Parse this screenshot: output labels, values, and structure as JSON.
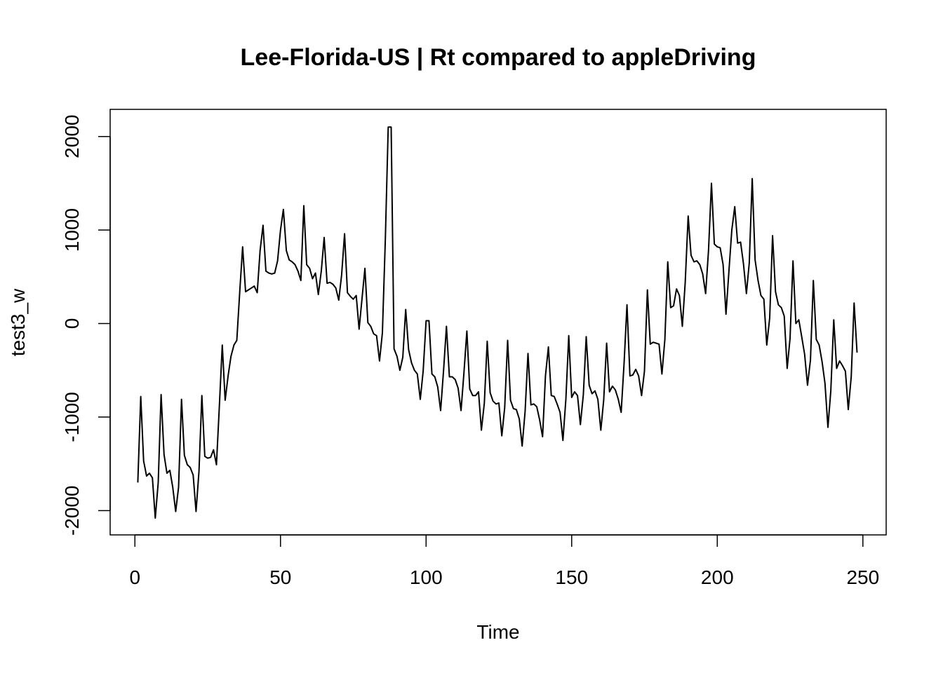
{
  "chart_data": {
    "type": "line",
    "title": "Lee-Florida-US | Rt compared to appleDriving",
    "xlabel": "Time",
    "ylabel": "test3_w",
    "xlim": [
      -8.5,
      258
    ],
    "ylim": [
      -2260,
      2290
    ],
    "xticks": [
      0,
      50,
      100,
      150,
      200,
      250
    ],
    "yticks": [
      -2000,
      -1000,
      0,
      1000,
      2000
    ],
    "grid": false,
    "legend": "none",
    "line_color": "#000000",
    "x": [
      1,
      2,
      3,
      4,
      5,
      6,
      7,
      8,
      9,
      10,
      11,
      12,
      13,
      14,
      15,
      16,
      17,
      18,
      19,
      20,
      21,
      22,
      23,
      24,
      25,
      26,
      27,
      28,
      29,
      30,
      31,
      32,
      33,
      34,
      35,
      36,
      37,
      38,
      39,
      40,
      41,
      42,
      43,
      44,
      45,
      46,
      47,
      48,
      49,
      50,
      51,
      52,
      53,
      54,
      55,
      56,
      57,
      58,
      59,
      60,
      61,
      62,
      63,
      64,
      65,
      66,
      67,
      68,
      69,
      70,
      71,
      72,
      73,
      74,
      75,
      76,
      77,
      78,
      79,
      80,
      81,
      82,
      83,
      84,
      85,
      86,
      87,
      88,
      89,
      90,
      91,
      92,
      93,
      94,
      95,
      96,
      97,
      98,
      99,
      100,
      101,
      102,
      103,
      104,
      105,
      106,
      107,
      108,
      109,
      110,
      111,
      112,
      113,
      114,
      115,
      116,
      117,
      118,
      119,
      120,
      121,
      122,
      123,
      124,
      125,
      126,
      127,
      128,
      129,
      130,
      131,
      132,
      133,
      134,
      135,
      136,
      137,
      138,
      139,
      140,
      141,
      142,
      143,
      144,
      145,
      146,
      147,
      148,
      149,
      150,
      151,
      152,
      153,
      154,
      155,
      156,
      157,
      158,
      159,
      160,
      161,
      162,
      163,
      164,
      165,
      166,
      167,
      168,
      169,
      170,
      171,
      172,
      173,
      174,
      175,
      176,
      177,
      178,
      179,
      180,
      181,
      182,
      183,
      184,
      185,
      186,
      187,
      188,
      189,
      190,
      191,
      192,
      193,
      194,
      195,
      196,
      197,
      198,
      199,
      200,
      201,
      202,
      203,
      204,
      205,
      206,
      207,
      208,
      209,
      210,
      211,
      212,
      213,
      214,
      215,
      216,
      217,
      218,
      219,
      220,
      221,
      222,
      223,
      224,
      225,
      226,
      227,
      228,
      229,
      230,
      231,
      232,
      233,
      234,
      235,
      236,
      237,
      238,
      239,
      240,
      241,
      242,
      243,
      244,
      245,
      246,
      247,
      248
    ],
    "y": [
      -1700,
      -780,
      -1470,
      -1630,
      -1600,
      -1650,
      -2080,
      -1700,
      -760,
      -1400,
      -1600,
      -1570,
      -1750,
      -2010,
      -1750,
      -810,
      -1410,
      -1510,
      -1540,
      -1620,
      -2010,
      -1580,
      -770,
      -1420,
      -1440,
      -1430,
      -1350,
      -1510,
      -890,
      -230,
      -820,
      -560,
      -350,
      -230,
      -180,
      340,
      820,
      340,
      360,
      380,
      400,
      330,
      780,
      1050,
      560,
      540,
      530,
      540,
      670,
      1000,
      1220,
      780,
      680,
      660,
      630,
      560,
      460,
      1260,
      630,
      590,
      480,
      540,
      310,
      560,
      920,
      430,
      440,
      420,
      380,
      250,
      520,
      960,
      330,
      290,
      260,
      300,
      -60,
      270,
      590,
      10,
      -30,
      -110,
      -130,
      -400,
      -100,
      900,
      2100,
      2100,
      -270,
      -350,
      -500,
      -360,
      150,
      -280,
      -420,
      -500,
      -540,
      -810,
      -510,
      30,
      30,
      -540,
      -570,
      -680,
      -930,
      -500,
      -30,
      -570,
      -570,
      -600,
      -690,
      -930,
      -530,
      -80,
      -700,
      -770,
      -770,
      -730,
      -1140,
      -850,
      -190,
      -740,
      -830,
      -860,
      -850,
      -1200,
      -900,
      -180,
      -820,
      -910,
      -920,
      -1020,
      -1310,
      -940,
      -320,
      -870,
      -860,
      -890,
      -1030,
      -1210,
      -560,
      -250,
      -770,
      -780,
      -860,
      -950,
      -1250,
      -810,
      -130,
      -790,
      -730,
      -770,
      -1080,
      -760,
      -140,
      -660,
      -750,
      -720,
      -810,
      -1140,
      -820,
      -210,
      -730,
      -670,
      -710,
      -810,
      -950,
      -420,
      200,
      -560,
      -550,
      -490,
      -560,
      -770,
      -510,
      360,
      -220,
      -200,
      -210,
      -220,
      -540,
      -170,
      660,
      170,
      190,
      370,
      300,
      -30,
      440,
      1150,
      730,
      660,
      670,
      630,
      530,
      320,
      780,
      1500,
      850,
      820,
      810,
      630,
      100,
      560,
      1000,
      1250,
      860,
      870,
      640,
      320,
      650,
      1550,
      680,
      460,
      300,
      260,
      -230,
      60,
      940,
      340,
      200,
      170,
      80,
      -480,
      -160,
      670,
      0,
      40,
      -140,
      -330,
      -660,
      -390,
      460,
      -170,
      -230,
      -410,
      -640,
      -1110,
      -720,
      40,
      -480,
      -400,
      -450,
      -510,
      -920,
      -570,
      220,
      -310
    ]
  }
}
